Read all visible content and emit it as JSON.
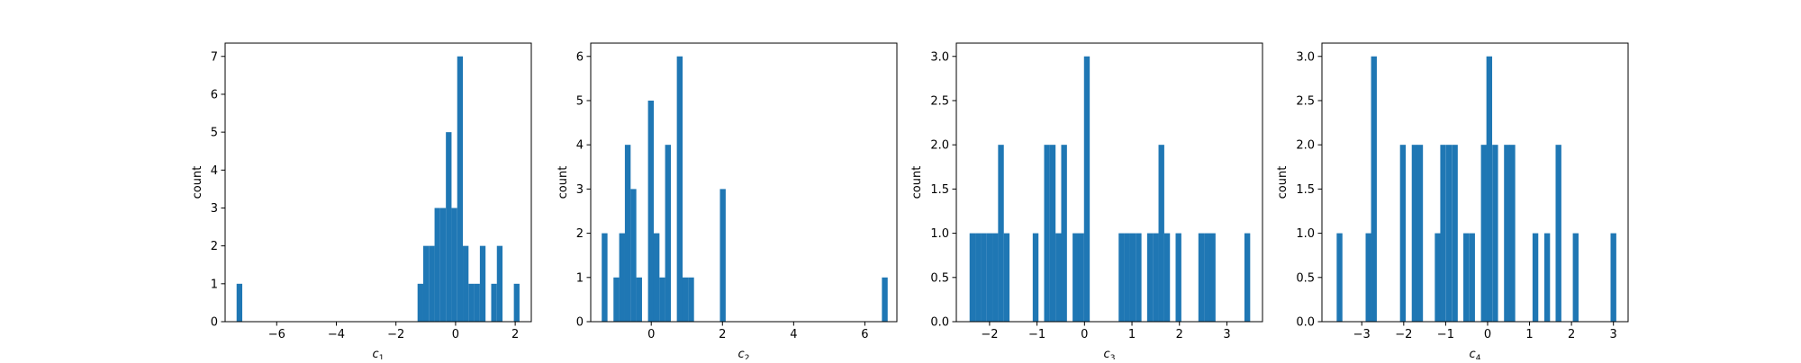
{
  "figure": {
    "background": "#ffffff"
  },
  "chart_data": [
    {
      "type": "bar",
      "xlabel": "c",
      "xlabel_sub": "1",
      "ylabel": "count",
      "xlim": [
        -7.73,
        2.54
      ],
      "ylim": [
        0,
        7.35
      ],
      "xticks": [
        -6,
        -4,
        -2,
        0,
        2
      ],
      "xtick_labels": [
        "−6",
        "−4",
        "−2",
        "0",
        "2"
      ],
      "yticks": [
        0,
        1,
        2,
        3,
        4,
        5,
        6,
        7
      ],
      "ytick_labels": [
        "0",
        "1",
        "2",
        "3",
        "4",
        "5",
        "6",
        "7"
      ],
      "bin_width": 0.19,
      "bins": [
        {
          "x": -7.25,
          "count": 1
        },
        {
          "x": -1.18,
          "count": 1
        },
        {
          "x": -0.99,
          "count": 2
        },
        {
          "x": -0.8,
          "count": 2
        },
        {
          "x": -0.61,
          "count": 3
        },
        {
          "x": -0.42,
          "count": 3
        },
        {
          "x": -0.23,
          "count": 5
        },
        {
          "x": -0.04,
          "count": 3
        },
        {
          "x": 0.15,
          "count": 7
        },
        {
          "x": 0.34,
          "count": 2
        },
        {
          "x": 0.53,
          "count": 1
        },
        {
          "x": 0.72,
          "count": 1
        },
        {
          "x": 0.91,
          "count": 2
        },
        {
          "x": 1.29,
          "count": 1
        },
        {
          "x": 1.48,
          "count": 2
        },
        {
          "x": 2.05,
          "count": 1
        }
      ],
      "color": "#1f77b4",
      "grid": false
    },
    {
      "type": "bar",
      "xlabel": "c",
      "xlabel_sub": "2",
      "ylabel": "count",
      "xlim": [
        -1.7,
        6.9
      ],
      "ylim": [
        0,
        6.3
      ],
      "xticks": [
        0,
        2,
        4,
        6
      ],
      "xtick_labels": [
        "0",
        "2",
        "4",
        "6"
      ],
      "yticks": [
        0,
        1,
        2,
        3,
        4,
        5,
        6
      ],
      "ytick_labels": [
        "0",
        "1",
        "2",
        "3",
        "4",
        "5",
        "6"
      ],
      "bin_width": 0.162,
      "bins": [
        {
          "x": -1.31,
          "count": 2
        },
        {
          "x": -0.98,
          "count": 1
        },
        {
          "x": -0.82,
          "count": 2
        },
        {
          "x": -0.66,
          "count": 4
        },
        {
          "x": -0.5,
          "count": 3
        },
        {
          "x": -0.34,
          "count": 1
        },
        {
          "x": -0.01,
          "count": 5
        },
        {
          "x": 0.15,
          "count": 2
        },
        {
          "x": 0.31,
          "count": 1
        },
        {
          "x": 0.47,
          "count": 4
        },
        {
          "x": 0.8,
          "count": 6
        },
        {
          "x": 0.96,
          "count": 1
        },
        {
          "x": 1.12,
          "count": 1
        },
        {
          "x": 2.01,
          "count": 3
        },
        {
          "x": 6.56,
          "count": 1
        }
      ],
      "color": "#1f77b4",
      "grid": false
    },
    {
      "type": "bar",
      "xlabel": "c",
      "xlabel_sub": "3",
      "ylabel": "count",
      "xlim": [
        -2.7,
        3.75
      ],
      "ylim": [
        0,
        3.15
      ],
      "xticks": [
        -2,
        -1,
        0,
        1,
        2,
        3
      ],
      "xtick_labels": [
        "−2",
        "−1",
        "0",
        "1",
        "2",
        "3"
      ],
      "yticks": [
        0,
        0.5,
        1.0,
        1.5,
        2.0,
        2.5,
        3.0
      ],
      "ytick_labels": [
        "0.0",
        "0.5",
        "1.0",
        "1.5",
        "2.0",
        "2.5",
        "3.0"
      ],
      "bin_width": 0.121,
      "bins": [
        {
          "x": -2.36,
          "count": 1
        },
        {
          "x": -2.24,
          "count": 1
        },
        {
          "x": -2.12,
          "count": 1
        },
        {
          "x": -2.0,
          "count": 1
        },
        {
          "x": -1.88,
          "count": 1
        },
        {
          "x": -1.76,
          "count": 2
        },
        {
          "x": -1.64,
          "count": 1
        },
        {
          "x": -1.03,
          "count": 1
        },
        {
          "x": -0.79,
          "count": 2
        },
        {
          "x": -0.67,
          "count": 2
        },
        {
          "x": -0.55,
          "count": 1
        },
        {
          "x": -0.43,
          "count": 2
        },
        {
          "x": -0.19,
          "count": 1
        },
        {
          "x": -0.07,
          "count": 1
        },
        {
          "x": 0.05,
          "count": 3
        },
        {
          "x": 0.78,
          "count": 1
        },
        {
          "x": 0.9,
          "count": 1
        },
        {
          "x": 1.02,
          "count": 1
        },
        {
          "x": 1.14,
          "count": 1
        },
        {
          "x": 1.38,
          "count": 1
        },
        {
          "x": 1.5,
          "count": 1
        },
        {
          "x": 1.62,
          "count": 2
        },
        {
          "x": 1.74,
          "count": 1
        },
        {
          "x": 1.98,
          "count": 1
        },
        {
          "x": 2.46,
          "count": 1
        },
        {
          "x": 2.58,
          "count": 1
        },
        {
          "x": 2.7,
          "count": 1
        },
        {
          "x": 3.43,
          "count": 1
        }
      ],
      "color": "#1f77b4",
      "grid": false
    },
    {
      "type": "bar",
      "xlabel": "c",
      "xlabel_sub": "4",
      "ylabel": "count",
      "xlim": [
        -3.95,
        3.35
      ],
      "ylim": [
        0,
        3.15
      ],
      "xticks": [
        -3,
        -2,
        -1,
        0,
        1,
        2,
        3
      ],
      "xtick_labels": [
        "−3",
        "−2",
        "−1",
        "0",
        "1",
        "2",
        "3"
      ],
      "yticks": [
        0,
        0.5,
        1.0,
        1.5,
        2.0,
        2.5,
        3.0
      ],
      "ytick_labels": [
        "0.0",
        "0.5",
        "1.0",
        "1.5",
        "2.0",
        "2.5",
        "3.0"
      ],
      "bin_width": 0.137,
      "bins": [
        {
          "x": -3.53,
          "count": 1
        },
        {
          "x": -2.84,
          "count": 1
        },
        {
          "x": -2.71,
          "count": 3
        },
        {
          "x": -2.02,
          "count": 2
        },
        {
          "x": -1.74,
          "count": 2
        },
        {
          "x": -1.61,
          "count": 2
        },
        {
          "x": -1.19,
          "count": 1
        },
        {
          "x": -1.06,
          "count": 2
        },
        {
          "x": -0.92,
          "count": 2
        },
        {
          "x": -0.78,
          "count": 2
        },
        {
          "x": -0.51,
          "count": 1
        },
        {
          "x": -0.37,
          "count": 1
        },
        {
          "x": -0.09,
          "count": 2
        },
        {
          "x": 0.04,
          "count": 3
        },
        {
          "x": 0.18,
          "count": 2
        },
        {
          "x": 0.46,
          "count": 2
        },
        {
          "x": 0.59,
          "count": 2
        },
        {
          "x": 1.14,
          "count": 1
        },
        {
          "x": 1.42,
          "count": 1
        },
        {
          "x": 1.69,
          "count": 2
        },
        {
          "x": 2.1,
          "count": 1
        },
        {
          "x": 3.0,
          "count": 1
        }
      ],
      "color": "#1f77b4",
      "grid": false
    }
  ]
}
